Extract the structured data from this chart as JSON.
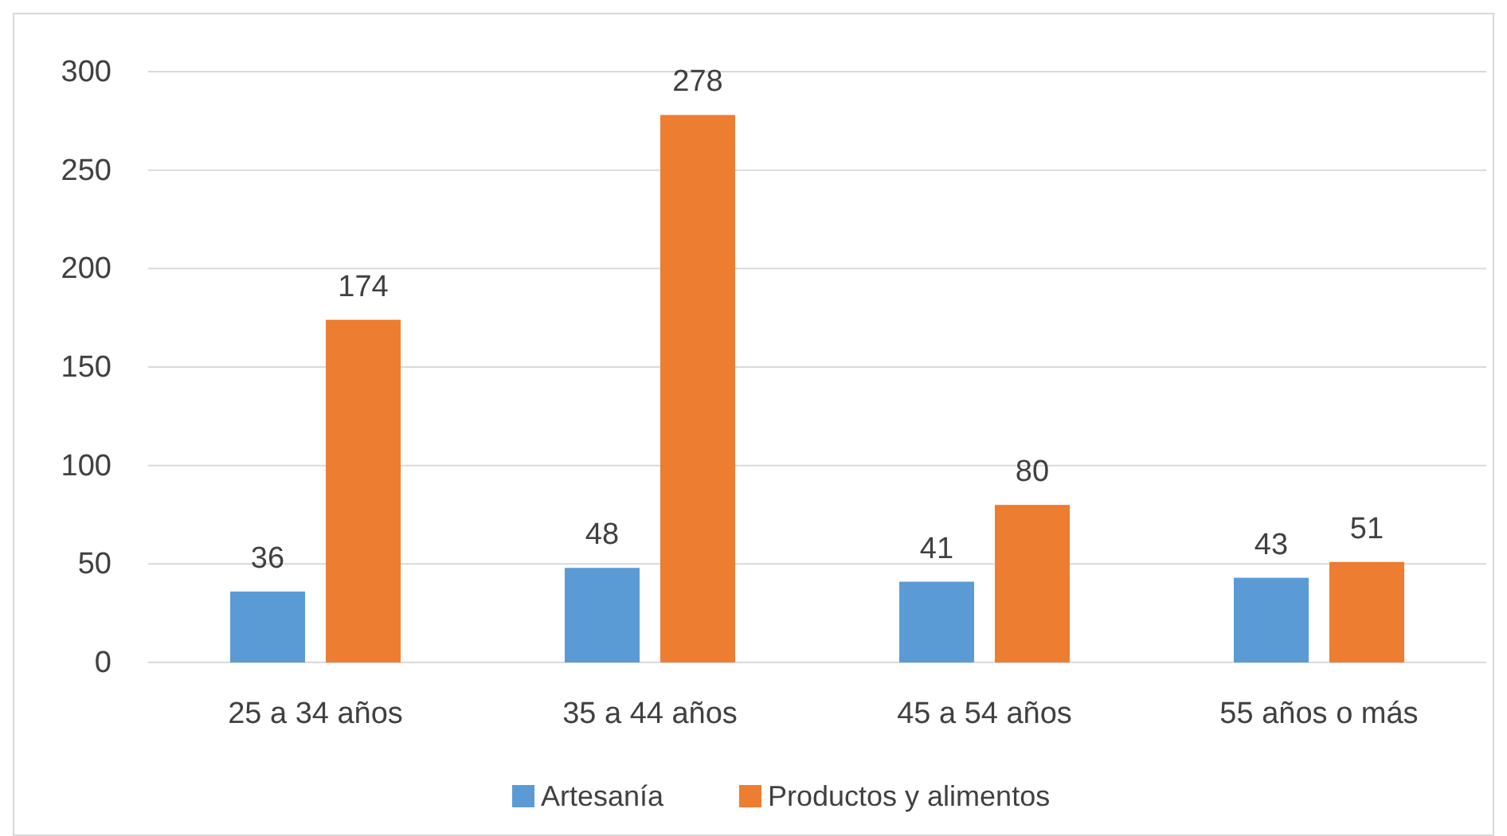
{
  "chart_data": {
    "type": "bar",
    "categories": [
      "25 a 34 años",
      "35 a 44 años",
      "45 a 54 años",
      "55 años o más"
    ],
    "series": [
      {
        "name": "Artesanía",
        "color": "#5b9bd5",
        "values": [
          36,
          48,
          41,
          43
        ]
      },
      {
        "name": "Productos y alimentos",
        "color": "#ed7d31",
        "values": [
          174,
          278,
          80,
          51
        ]
      }
    ],
    "ylim": [
      0,
      300
    ],
    "yticks": [
      0,
      50,
      100,
      150,
      200,
      250,
      300
    ],
    "grid": "y",
    "legend": "bottom",
    "data_labels": true
  }
}
